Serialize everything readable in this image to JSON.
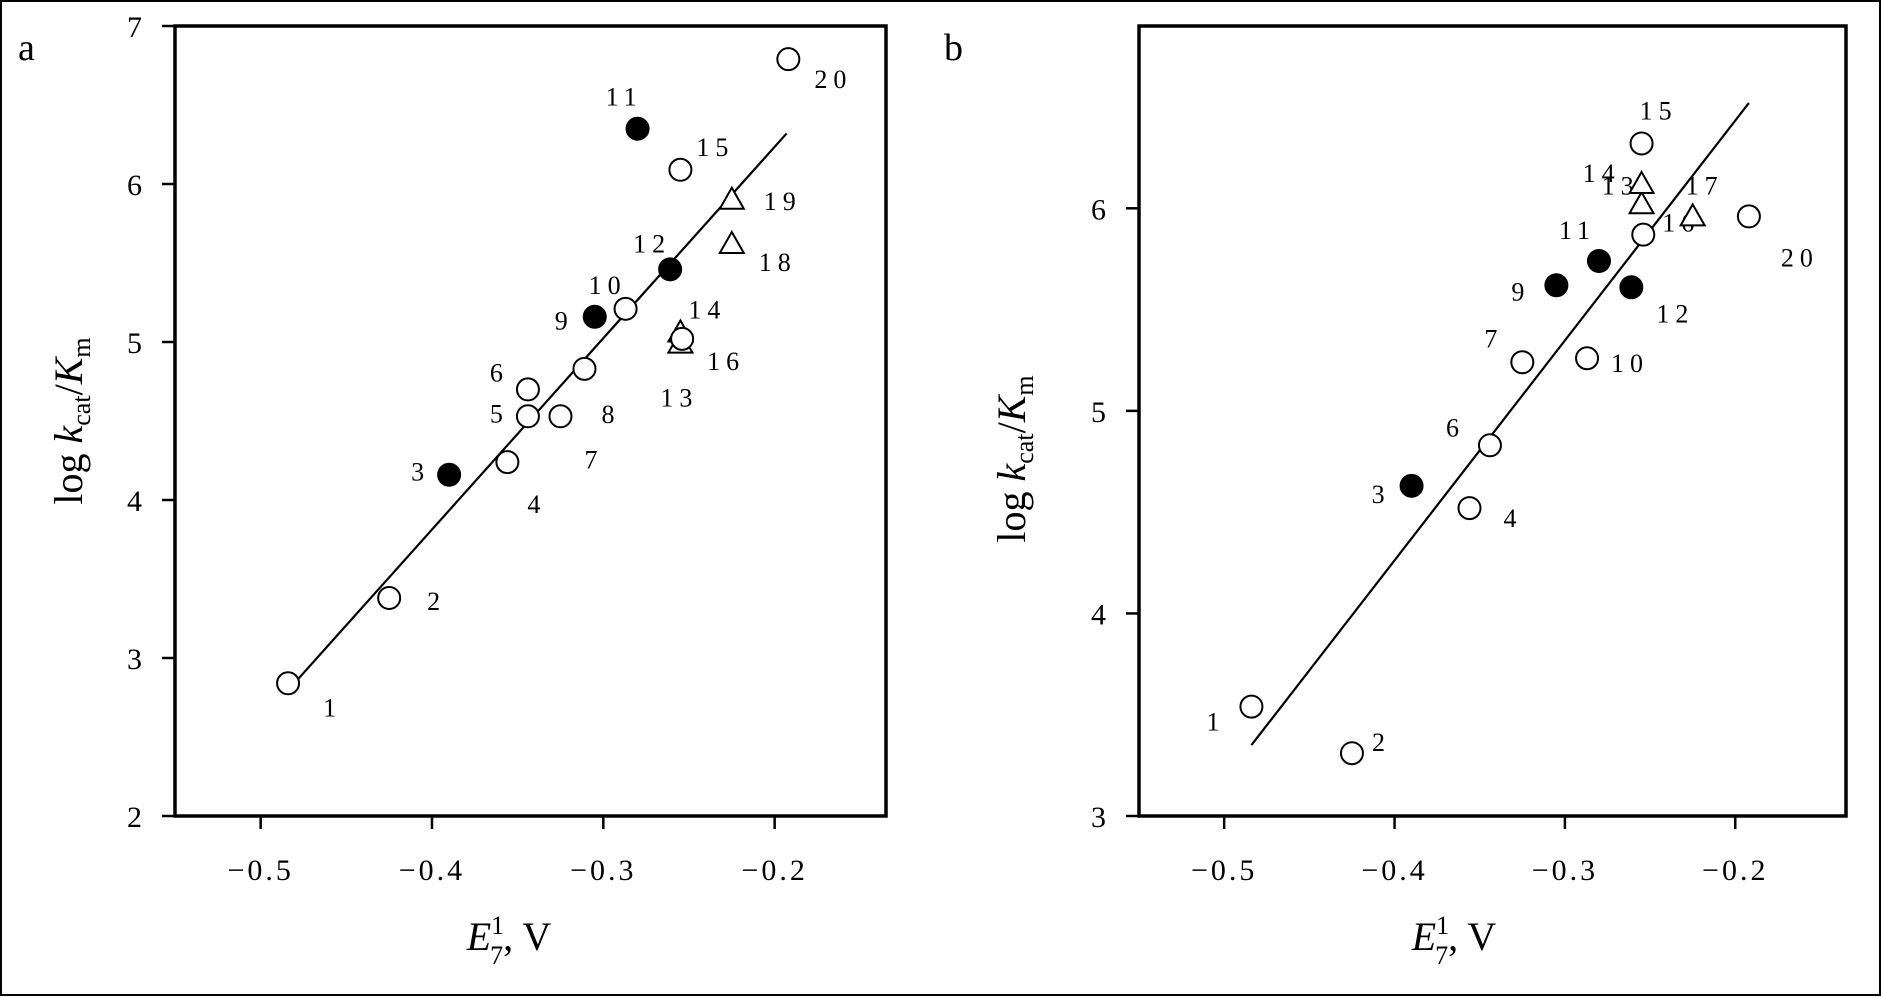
{
  "chart_data": [
    {
      "type": "scatter",
      "panel_label": "a",
      "xlabel": {
        "main": "E",
        "sup": "1",
        "sub": "7",
        "suffix": ", V"
      },
      "ylabel": {
        "prefix": "log ",
        "k": "k",
        "k_sub": "cat",
        "slash": "/",
        "K": "K",
        "K_sub": "m"
      },
      "xlim": [
        -0.55,
        -0.135
      ],
      "ylim": [
        2,
        7
      ],
      "xticks": [
        -0.5,
        -0.4,
        -0.3,
        -0.2
      ],
      "xtick_labels": [
        "-0.5",
        "-0.4",
        "-0.3",
        "-0.2"
      ],
      "yticks": [
        2,
        3,
        4,
        5,
        6,
        7
      ],
      "ytick_labels": [
        "2",
        "3",
        "4",
        "5",
        "6",
        "7"
      ],
      "fit_line": {
        "x": [
          -0.482,
          -0.193
        ],
        "y": [
          2.82,
          6.32
        ]
      },
      "points": [
        {
          "label": "1",
          "x": -0.484,
          "y": 2.84,
          "marker": "circle-open"
        },
        {
          "label": "2",
          "x": -0.425,
          "y": 3.38,
          "marker": "circle-open"
        },
        {
          "label": "3",
          "x": -0.39,
          "y": 4.16,
          "marker": "circle-filled"
        },
        {
          "label": "4",
          "x": -0.356,
          "y": 4.24,
          "marker": "circle-open"
        },
        {
          "label": "5",
          "x": -0.344,
          "y": 4.53,
          "marker": "circle-open"
        },
        {
          "label": "6",
          "x": -0.344,
          "y": 4.7,
          "marker": "circle-open"
        },
        {
          "label": "7",
          "x": -0.325,
          "y": 4.53,
          "marker": "circle-open"
        },
        {
          "label": "8",
          "x": -0.311,
          "y": 4.83,
          "marker": "circle-open"
        },
        {
          "label": "9",
          "x": -0.305,
          "y": 5.16,
          "marker": "circle-filled"
        },
        {
          "label": "10",
          "x": -0.287,
          "y": 5.21,
          "marker": "circle-open"
        },
        {
          "label": "11",
          "x": -0.28,
          "y": 6.35,
          "marker": "circle-filled"
        },
        {
          "label": "12",
          "x": -0.261,
          "y": 5.46,
          "marker": "circle-filled"
        },
        {
          "label": "13",
          "x": -0.255,
          "y": 4.99,
          "marker": "triangle-open"
        },
        {
          "label": "14",
          "x": -0.255,
          "y": 5.06,
          "marker": "triangle-open"
        },
        {
          "label": "15",
          "x": -0.255,
          "y": 6.09,
          "marker": "circle-open"
        },
        {
          "label": "16",
          "x": -0.254,
          "y": 5.02,
          "marker": "circle-open"
        },
        {
          "label": "18",
          "x": -0.225,
          "y": 5.62,
          "marker": "triangle-open"
        },
        {
          "label": "19",
          "x": -0.225,
          "y": 5.9,
          "marker": "triangle-open"
        },
        {
          "label": "20",
          "x": -0.192,
          "y": 6.79,
          "marker": "circle-open"
        }
      ]
    },
    {
      "type": "scatter",
      "panel_label": "b",
      "xlabel": {
        "main": "E",
        "sup": "1",
        "sub": "7",
        "suffix": ", V"
      },
      "ylabel": {
        "prefix": "log ",
        "k": "k",
        "k_sub": "cat",
        "slash": "/",
        "K": "K",
        "K_sub": "m"
      },
      "xlim": [
        -0.55,
        -0.135
      ],
      "ylim": [
        3,
        6.9
      ],
      "xticks": [
        -0.5,
        -0.4,
        -0.3,
        -0.2
      ],
      "xtick_labels": [
        "-0.5",
        "-0.4",
        "-0.3",
        "-0.2"
      ],
      "yticks": [
        3,
        4,
        5,
        6
      ],
      "ytick_labels": [
        "3",
        "4",
        "5",
        "6"
      ],
      "fit_line": {
        "x": [
          -0.484,
          -0.192
        ],
        "y": [
          3.35,
          6.52
        ]
      },
      "points": [
        {
          "label": "1",
          "x": -0.484,
          "y": 3.54,
          "marker": "circle-open"
        },
        {
          "label": "2",
          "x": -0.425,
          "y": 3.31,
          "marker": "circle-open"
        },
        {
          "label": "3",
          "x": -0.39,
          "y": 4.63,
          "marker": "circle-filled"
        },
        {
          "label": "4",
          "x": -0.356,
          "y": 4.52,
          "marker": "circle-open"
        },
        {
          "label": "6",
          "x": -0.344,
          "y": 4.83,
          "marker": "circle-open"
        },
        {
          "label": "7",
          "x": -0.325,
          "y": 5.24,
          "marker": "circle-open"
        },
        {
          "label": "9",
          "x": -0.305,
          "y": 5.62,
          "marker": "circle-filled"
        },
        {
          "label": "10",
          "x": -0.287,
          "y": 5.26,
          "marker": "circle-open"
        },
        {
          "label": "11",
          "x": -0.28,
          "y": 5.74,
          "marker": "circle-filled"
        },
        {
          "label": "12",
          "x": -0.261,
          "y": 5.61,
          "marker": "circle-filled"
        },
        {
          "label": "13",
          "x": -0.255,
          "y": 6.02,
          "marker": "triangle-open"
        },
        {
          "label": "14",
          "x": -0.255,
          "y": 6.12,
          "marker": "triangle-open"
        },
        {
          "label": "15",
          "x": -0.255,
          "y": 6.32,
          "marker": "circle-open"
        },
        {
          "label": "16",
          "x": -0.254,
          "y": 5.87,
          "marker": "circle-open"
        },
        {
          "label": "17",
          "x": -0.225,
          "y": 5.96,
          "marker": "triangle-open"
        },
        {
          "label": "20",
          "x": -0.192,
          "y": 5.96,
          "marker": "circle-open"
        }
      ]
    }
  ]
}
